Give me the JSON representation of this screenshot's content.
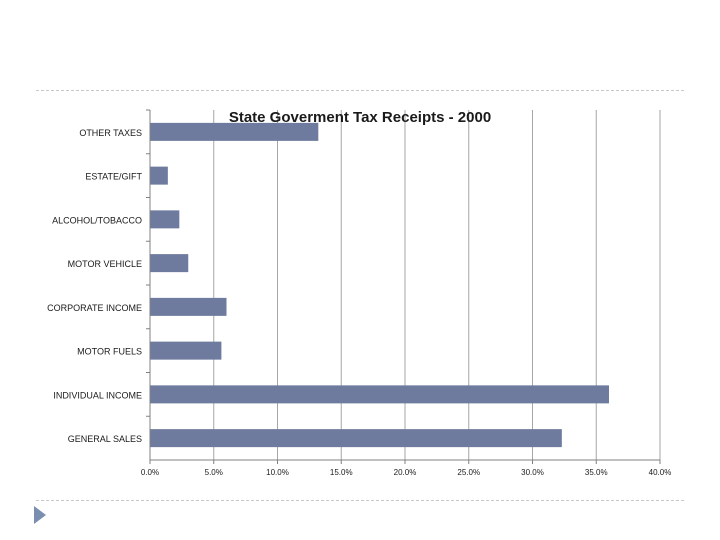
{
  "chart_data": {
    "type": "bar",
    "orientation": "horizontal",
    "title": "State Goverment Tax Receipts - 2000",
    "categories": [
      "OTHER TAXES",
      "ESTATE/GIFT",
      "ALCOHOL/TOBACCO",
      "MOTOR VEHICLE",
      "CORPORATE INCOME",
      "MOTOR FUELS",
      "INDIVIDUAL INCOME",
      "GENERAL SALES"
    ],
    "values": [
      13.2,
      1.4,
      2.3,
      3.0,
      6.0,
      5.6,
      36.0,
      32.3
    ],
    "xlim": [
      0,
      40
    ],
    "ticks": [
      0,
      5,
      10,
      15,
      20,
      25,
      30,
      35,
      40
    ],
    "tick_labels": [
      "0.0%",
      "5.0%",
      "10.0%",
      "15.0%",
      "20.0%",
      "25.0%",
      "30.0%",
      "35.0%",
      "40.0%"
    ],
    "grid": true,
    "bar_color": "#6e7b9f",
    "grid_color": "#a6a6a6"
  },
  "slide": {
    "nav_arrow_icon": "triangle-right-icon",
    "accent_color": "#7a8fb0"
  }
}
